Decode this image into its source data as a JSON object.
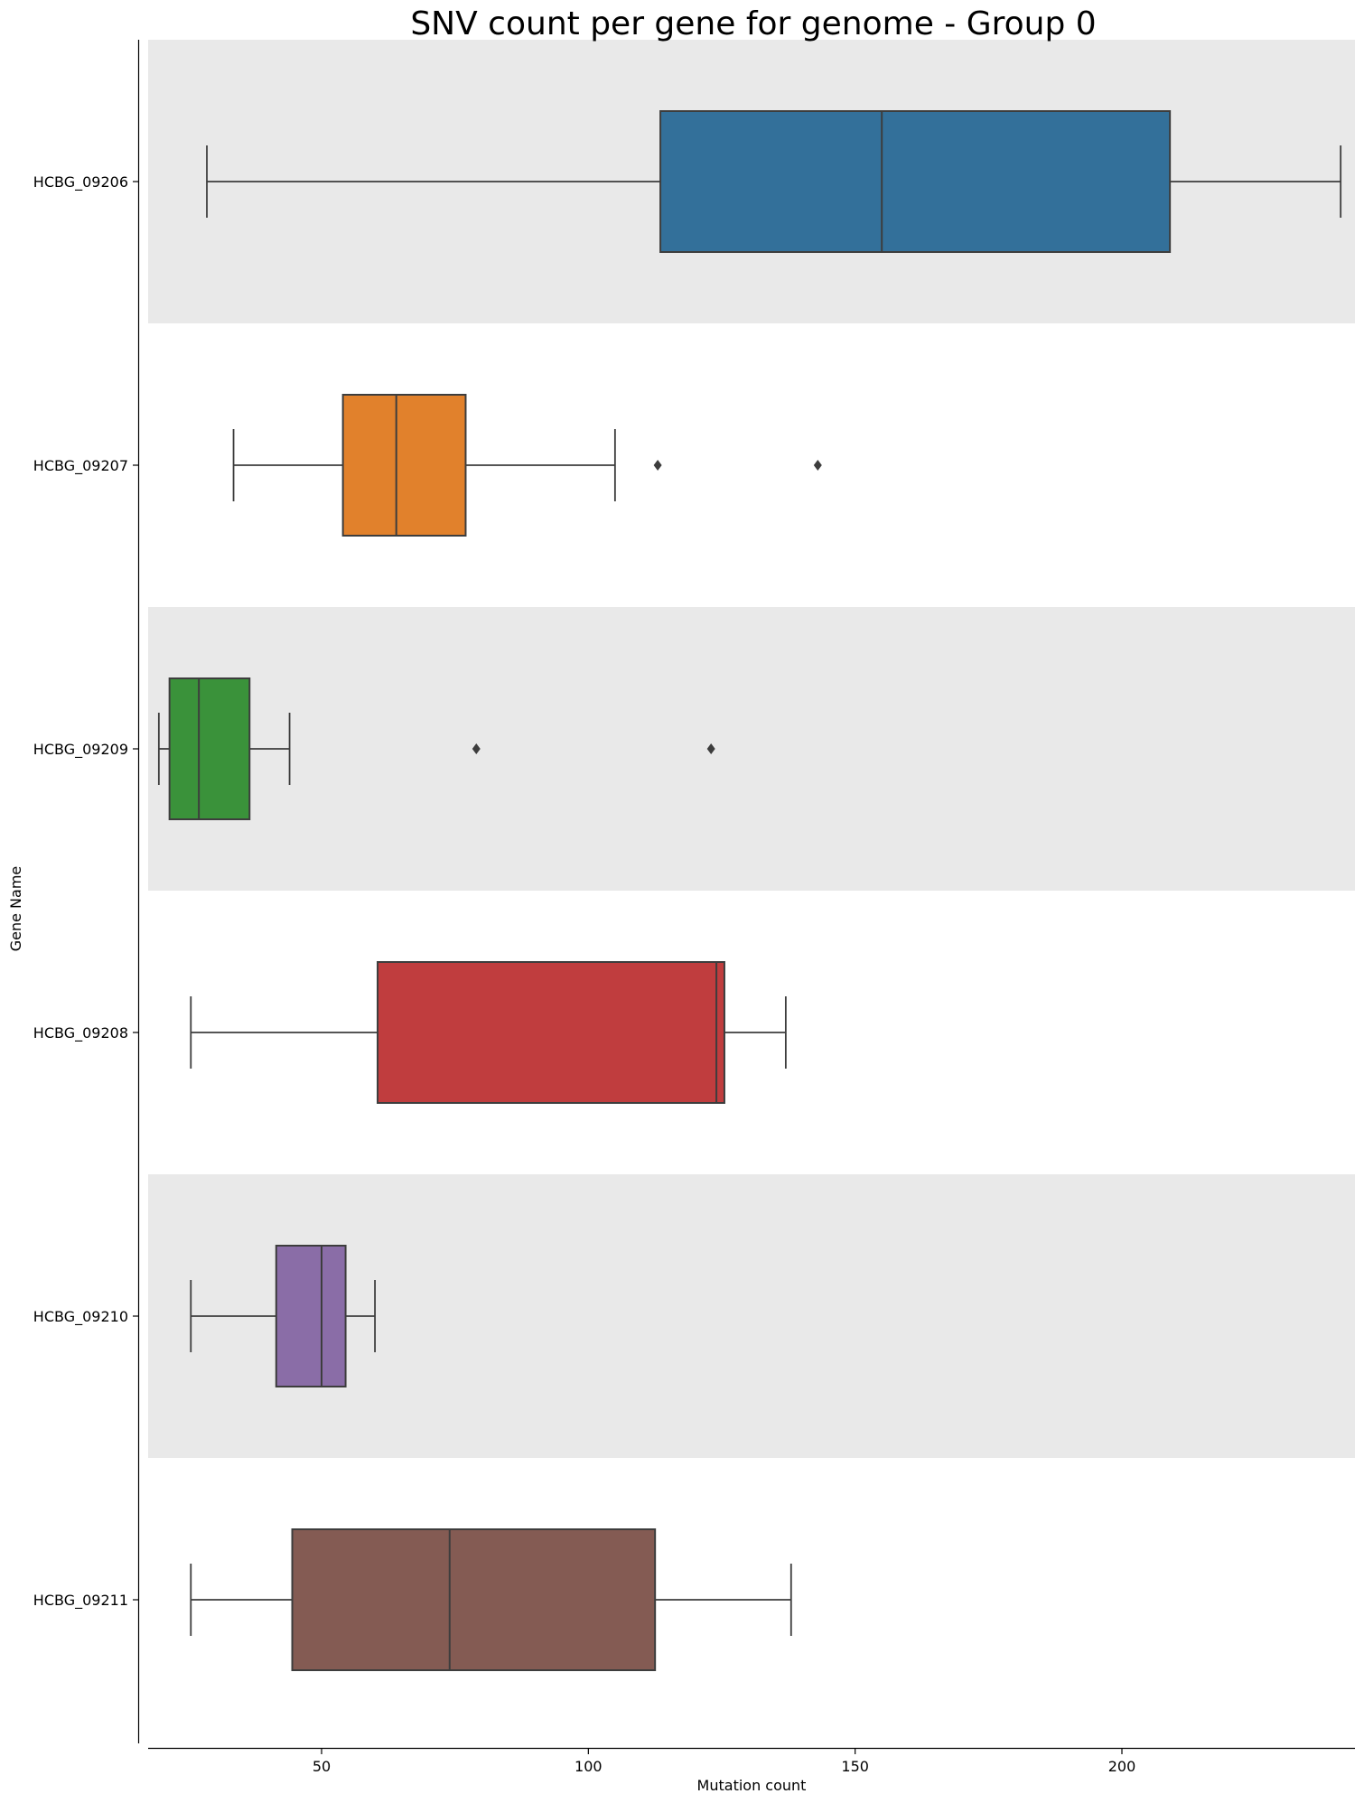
{
  "chart_data": {
    "type": "boxplot",
    "orientation": "horizontal",
    "title": "SNV count per gene for genome - Group 0",
    "xlabel": "Mutation count",
    "ylabel": "Gene Name",
    "xlim": [
      17.5,
      242
    ],
    "xticks": [
      50,
      100,
      150,
      200
    ],
    "band_color": "#e9e9e9",
    "categories": [
      {
        "label": "HCBG_09206",
        "color": "#33709a",
        "whisker_low": 28.5,
        "q1": 113.5,
        "median": 155,
        "q3": 209,
        "whisker_high": 241,
        "outliers": []
      },
      {
        "label": "HCBG_09207",
        "color": "#e1812c",
        "whisker_low": 33.5,
        "q1": 54,
        "median": 64,
        "q3": 77,
        "whisker_high": 105,
        "outliers": [
          113,
          143
        ]
      },
      {
        "label": "HCBG_09209",
        "color": "#3a923a",
        "whisker_low": 19.5,
        "q1": 21.5,
        "median": 27,
        "q3": 36.5,
        "whisker_high": 44,
        "outliers": [
          79,
          123
        ]
      },
      {
        "label": "HCBG_09208",
        "color": "#c03d3e",
        "whisker_low": 25.5,
        "q1": 60.5,
        "median": 124,
        "q3": 125.5,
        "whisker_high": 137,
        "outliers": []
      },
      {
        "label": "HCBG_09210",
        "color": "#8a6da7",
        "whisker_low": 25.5,
        "q1": 41.5,
        "median": 50,
        "q3": 54.5,
        "whisker_high": 60,
        "outliers": []
      },
      {
        "label": "HCBG_09211",
        "color": "#845b53",
        "whisker_low": 25.5,
        "q1": 44.5,
        "median": 74,
        "q3": 112.5,
        "whisker_high": 138,
        "outliers": []
      }
    ]
  }
}
